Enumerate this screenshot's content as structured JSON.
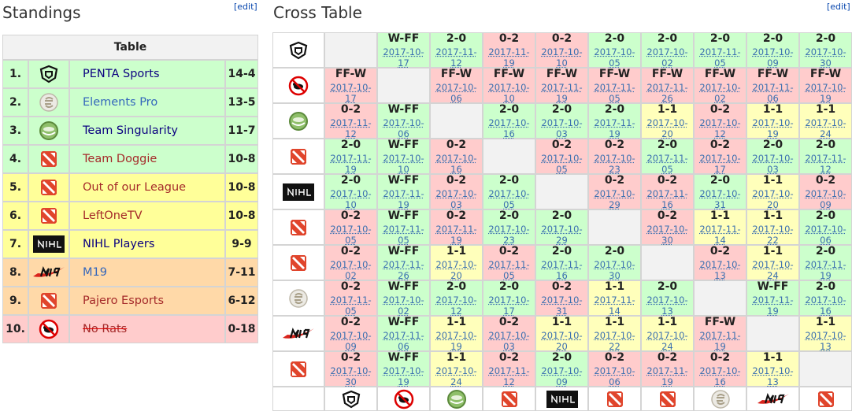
{
  "standings": {
    "title": "Standings",
    "edit": "[edit]",
    "table_header": "Table",
    "rows": [
      {
        "rank": "1.",
        "team": "PENTA Sports",
        "score": "14-4",
        "color": "#ccffcc",
        "name_color": "#0b0080"
      },
      {
        "rank": "2.",
        "team": "Elements Pro",
        "score": "13-5",
        "color": "#ccffcc",
        "name_color": "#3366bb"
      },
      {
        "rank": "3.",
        "team": "Team Singularity",
        "score": "11-7",
        "color": "#ccffcc",
        "name_color": "#0b0080"
      },
      {
        "rank": "4.",
        "team": "Team Doggie",
        "score": "10-8",
        "color": "#ccffcc",
        "name_color": "#a52a2a"
      },
      {
        "rank": "5.",
        "team": "Out of our League",
        "score": "10-8",
        "color": "#ffff99",
        "name_color": "#a52a2a"
      },
      {
        "rank": "6.",
        "team": "LeftOneTV",
        "score": "10-8",
        "color": "#ffff99",
        "name_color": "#a52a2a"
      },
      {
        "rank": "7.",
        "team": "NIHL Players",
        "score": "9-9",
        "color": "#ffff99",
        "name_color": "#0b0080"
      },
      {
        "rank": "8.",
        "team": "M19",
        "score": "7-11",
        "color": "#ffd9a8",
        "name_color": "#3366bb"
      },
      {
        "rank": "9.",
        "team": "Pajero Esports",
        "score": "6-12",
        "color": "#ffd9a8",
        "name_color": "#a52a2a"
      },
      {
        "rank": "10.",
        "team": "No Rats",
        "score": "0-18",
        "color": "#ffcccc",
        "name_color": "#a52a2a",
        "struck": true
      }
    ]
  },
  "cross_table": {
    "title": "Cross Table",
    "edit": "[edit]",
    "rows": [
      [
        null,
        {
          "result": "W-FF",
          "date": "2017-10-17",
          "color": "#ccffcc"
        },
        {
          "result": "2-0",
          "date": "2017-11-12",
          "color": "#ccffcc"
        },
        {
          "result": "0-2",
          "date": "2017-11-19",
          "color": "#ffcccc"
        },
        {
          "result": "0-2",
          "date": "2017-10-10",
          "color": "#ffcccc"
        },
        {
          "result": "2-0",
          "date": "2017-10-05",
          "color": "#ccffcc"
        },
        {
          "result": "2-0",
          "date": "2017-10-02",
          "color": "#ccffcc"
        },
        {
          "result": "2-0",
          "date": "2017-11-05",
          "color": "#ccffcc"
        },
        {
          "result": "2-0",
          "date": "2017-10-09",
          "color": "#ccffcc"
        },
        {
          "result": "2-0",
          "date": "2017-10-30",
          "color": "#ccffcc"
        }
      ],
      [
        {
          "result": "FF-W",
          "date": "2017-10-17",
          "color": "#ffcccc"
        },
        null,
        {
          "result": "FF-W",
          "date": "2017-10-06",
          "color": "#ffcccc"
        },
        {
          "result": "FF-W",
          "date": "2017-10-10",
          "color": "#ffcccc"
        },
        {
          "result": "FF-W",
          "date": "2017-11-19",
          "color": "#ffcccc"
        },
        {
          "result": "FF-W",
          "date": "2017-11-05",
          "color": "#ffcccc"
        },
        {
          "result": "FF-W",
          "date": "2017-11-26",
          "color": "#ffcccc"
        },
        {
          "result": "FF-W",
          "date": "2017-10-02",
          "color": "#ffcccc"
        },
        {
          "result": "FF-W",
          "date": "2017-11-06",
          "color": "#ffcccc"
        },
        {
          "result": "FF-W",
          "date": "2017-10-19",
          "color": "#ffcccc"
        }
      ],
      [
        {
          "result": "0-2",
          "date": "2017-11-12",
          "color": "#ffcccc"
        },
        {
          "result": "W-FF",
          "date": "2017-10-06",
          "color": "#ccffcc"
        },
        null,
        {
          "result": "2-0",
          "date": "2017-10-16",
          "color": "#ccffcc"
        },
        {
          "result": "2-0",
          "date": "2017-10-03",
          "color": "#ccffcc"
        },
        {
          "result": "2-0",
          "date": "2017-11-19",
          "color": "#ccffcc"
        },
        {
          "result": "1-1",
          "date": "2017-10-20",
          "color": "#ffffbb"
        },
        {
          "result": "0-2",
          "date": "2017-10-12",
          "color": "#ffcccc"
        },
        {
          "result": "1-1",
          "date": "2017-10-19",
          "color": "#ffffbb"
        },
        {
          "result": "1-1",
          "date": "2017-10-24",
          "color": "#ffffbb"
        }
      ],
      [
        {
          "result": "2-0",
          "date": "2017-11-19",
          "color": "#ccffcc"
        },
        {
          "result": "W-FF",
          "date": "2017-10-10",
          "color": "#ccffcc"
        },
        {
          "result": "0-2",
          "date": "2017-10-16",
          "color": "#ffcccc"
        },
        null,
        {
          "result": "0-2",
          "date": "2017-10-05",
          "color": "#ffcccc"
        },
        {
          "result": "0-2",
          "date": "2017-10-23",
          "color": "#ffcccc"
        },
        {
          "result": "2-0",
          "date": "2017-11-05",
          "color": "#ccffcc"
        },
        {
          "result": "0-2",
          "date": "2017-10-17",
          "color": "#ffcccc"
        },
        {
          "result": "2-0",
          "date": "2017-10-03",
          "color": "#ccffcc"
        },
        {
          "result": "2-0",
          "date": "2017-11-12",
          "color": "#ccffcc"
        }
      ],
      [
        {
          "result": "2-0",
          "date": "2017-10-10",
          "color": "#ccffcc"
        },
        {
          "result": "W-FF",
          "date": "2017-11-19",
          "color": "#ccffcc"
        },
        {
          "result": "0-2",
          "date": "2017-10-03",
          "color": "#ffcccc"
        },
        {
          "result": "2-0",
          "date": "2017-10-05",
          "color": "#ccffcc"
        },
        null,
        {
          "result": "0-2",
          "date": "2017-10-29",
          "color": "#ffcccc"
        },
        {
          "result": "0-2",
          "date": "2017-11-16",
          "color": "#ffcccc"
        },
        {
          "result": "2-0",
          "date": "2017-10-31",
          "color": "#ccffcc"
        },
        {
          "result": "1-1",
          "date": "2017-10-20",
          "color": "#ffffbb"
        },
        {
          "result": "0-2",
          "date": "2017-10-09",
          "color": "#ffcccc"
        }
      ],
      [
        {
          "result": "0-2",
          "date": "2017-10-05",
          "color": "#ffcccc"
        },
        {
          "result": "W-FF",
          "date": "2017-11-05",
          "color": "#ccffcc"
        },
        {
          "result": "0-2",
          "date": "2017-11-19",
          "color": "#ffcccc"
        },
        {
          "result": "2-0",
          "date": "2017-10-23",
          "color": "#ccffcc"
        },
        {
          "result": "2-0",
          "date": "2017-10-29",
          "color": "#ccffcc"
        },
        null,
        {
          "result": "0-2",
          "date": "2017-10-30",
          "color": "#ffcccc"
        },
        {
          "result": "1-1",
          "date": "2017-11-14",
          "color": "#ffffbb"
        },
        {
          "result": "1-1",
          "date": "2017-10-22",
          "color": "#ffffbb"
        },
        {
          "result": "2-0",
          "date": "2017-10-06",
          "color": "#ccffcc"
        }
      ],
      [
        {
          "result": "0-2",
          "date": "2017-10-02",
          "color": "#ffcccc"
        },
        {
          "result": "W-FF",
          "date": "2017-11-26",
          "color": "#ccffcc"
        },
        {
          "result": "1-1",
          "date": "2017-10-20",
          "color": "#ffffbb"
        },
        {
          "result": "0-2",
          "date": "2017-11-05",
          "color": "#ffcccc"
        },
        {
          "result": "2-0",
          "date": "2017-11-16",
          "color": "#ccffcc"
        },
        {
          "result": "2-0",
          "date": "2017-10-30",
          "color": "#ccffcc"
        },
        null,
        {
          "result": "0-2",
          "date": "2017-10-13",
          "color": "#ffcccc"
        },
        {
          "result": "1-1",
          "date": "2017-10-24",
          "color": "#ffffbb"
        },
        {
          "result": "2-0",
          "date": "2017-11-19",
          "color": "#ccffcc"
        }
      ],
      [
        {
          "result": "0-2",
          "date": "2017-11-05",
          "color": "#ffcccc"
        },
        {
          "result": "W-FF",
          "date": "2017-10-02",
          "color": "#ccffcc"
        },
        {
          "result": "2-0",
          "date": "2017-10-12",
          "color": "#ccffcc"
        },
        {
          "result": "2-0",
          "date": "2017-10-17",
          "color": "#ccffcc"
        },
        {
          "result": "0-2",
          "date": "2017-10-31",
          "color": "#ffcccc"
        },
        {
          "result": "1-1",
          "date": "2017-11-14",
          "color": "#ffffbb"
        },
        {
          "result": "2-0",
          "date": "2017-10-13",
          "color": "#ccffcc"
        },
        null,
        {
          "result": "W-FF",
          "date": "2017-11-19",
          "color": "#ccffcc"
        },
        {
          "result": "2-0",
          "date": "2017-10-16",
          "color": "#ccffcc"
        }
      ],
      [
        {
          "result": "0-2",
          "date": "2017-10-09",
          "color": "#ffcccc"
        },
        {
          "result": "W-FF",
          "date": "2017-11-06",
          "color": "#ccffcc"
        },
        {
          "result": "1-1",
          "date": "2017-10-19",
          "color": "#ffffbb"
        },
        {
          "result": "0-2",
          "date": "2017-10-03",
          "color": "#ffcccc"
        },
        {
          "result": "1-1",
          "date": "2017-10-20",
          "color": "#ffffbb"
        },
        {
          "result": "1-1",
          "date": "2017-10-22",
          "color": "#ffffbb"
        },
        {
          "result": "1-1",
          "date": "2017-10-24",
          "color": "#ffffbb"
        },
        {
          "result": "FF-W",
          "date": "2017-11-19",
          "color": "#ffcccc"
        },
        null,
        {
          "result": "1-1",
          "date": "2017-10-13",
          "color": "#ffffbb"
        }
      ],
      [
        {
          "result": "0-2",
          "date": "2017-10-30",
          "color": "#ffcccc"
        },
        {
          "result": "W-FF",
          "date": "2017-10-19",
          "color": "#ccffcc"
        },
        {
          "result": "1-1",
          "date": "2017-10-24",
          "color": "#ffffbb"
        },
        {
          "result": "0-2",
          "date": "2017-11-12",
          "color": "#ffcccc"
        },
        {
          "result": "2-0",
          "date": "2017-10-09",
          "color": "#ccffcc"
        },
        {
          "result": "0-2",
          "date": "2017-10-06",
          "color": "#ffcccc"
        },
        {
          "result": "0-2",
          "date": "2017-11-19",
          "color": "#ffcccc"
        },
        {
          "result": "0-2",
          "date": "2017-10-16",
          "color": "#ffcccc"
        },
        {
          "result": "1-1",
          "date": "2017-10-13",
          "color": "#ffffbb"
        },
        null
      ]
    ]
  }
}
